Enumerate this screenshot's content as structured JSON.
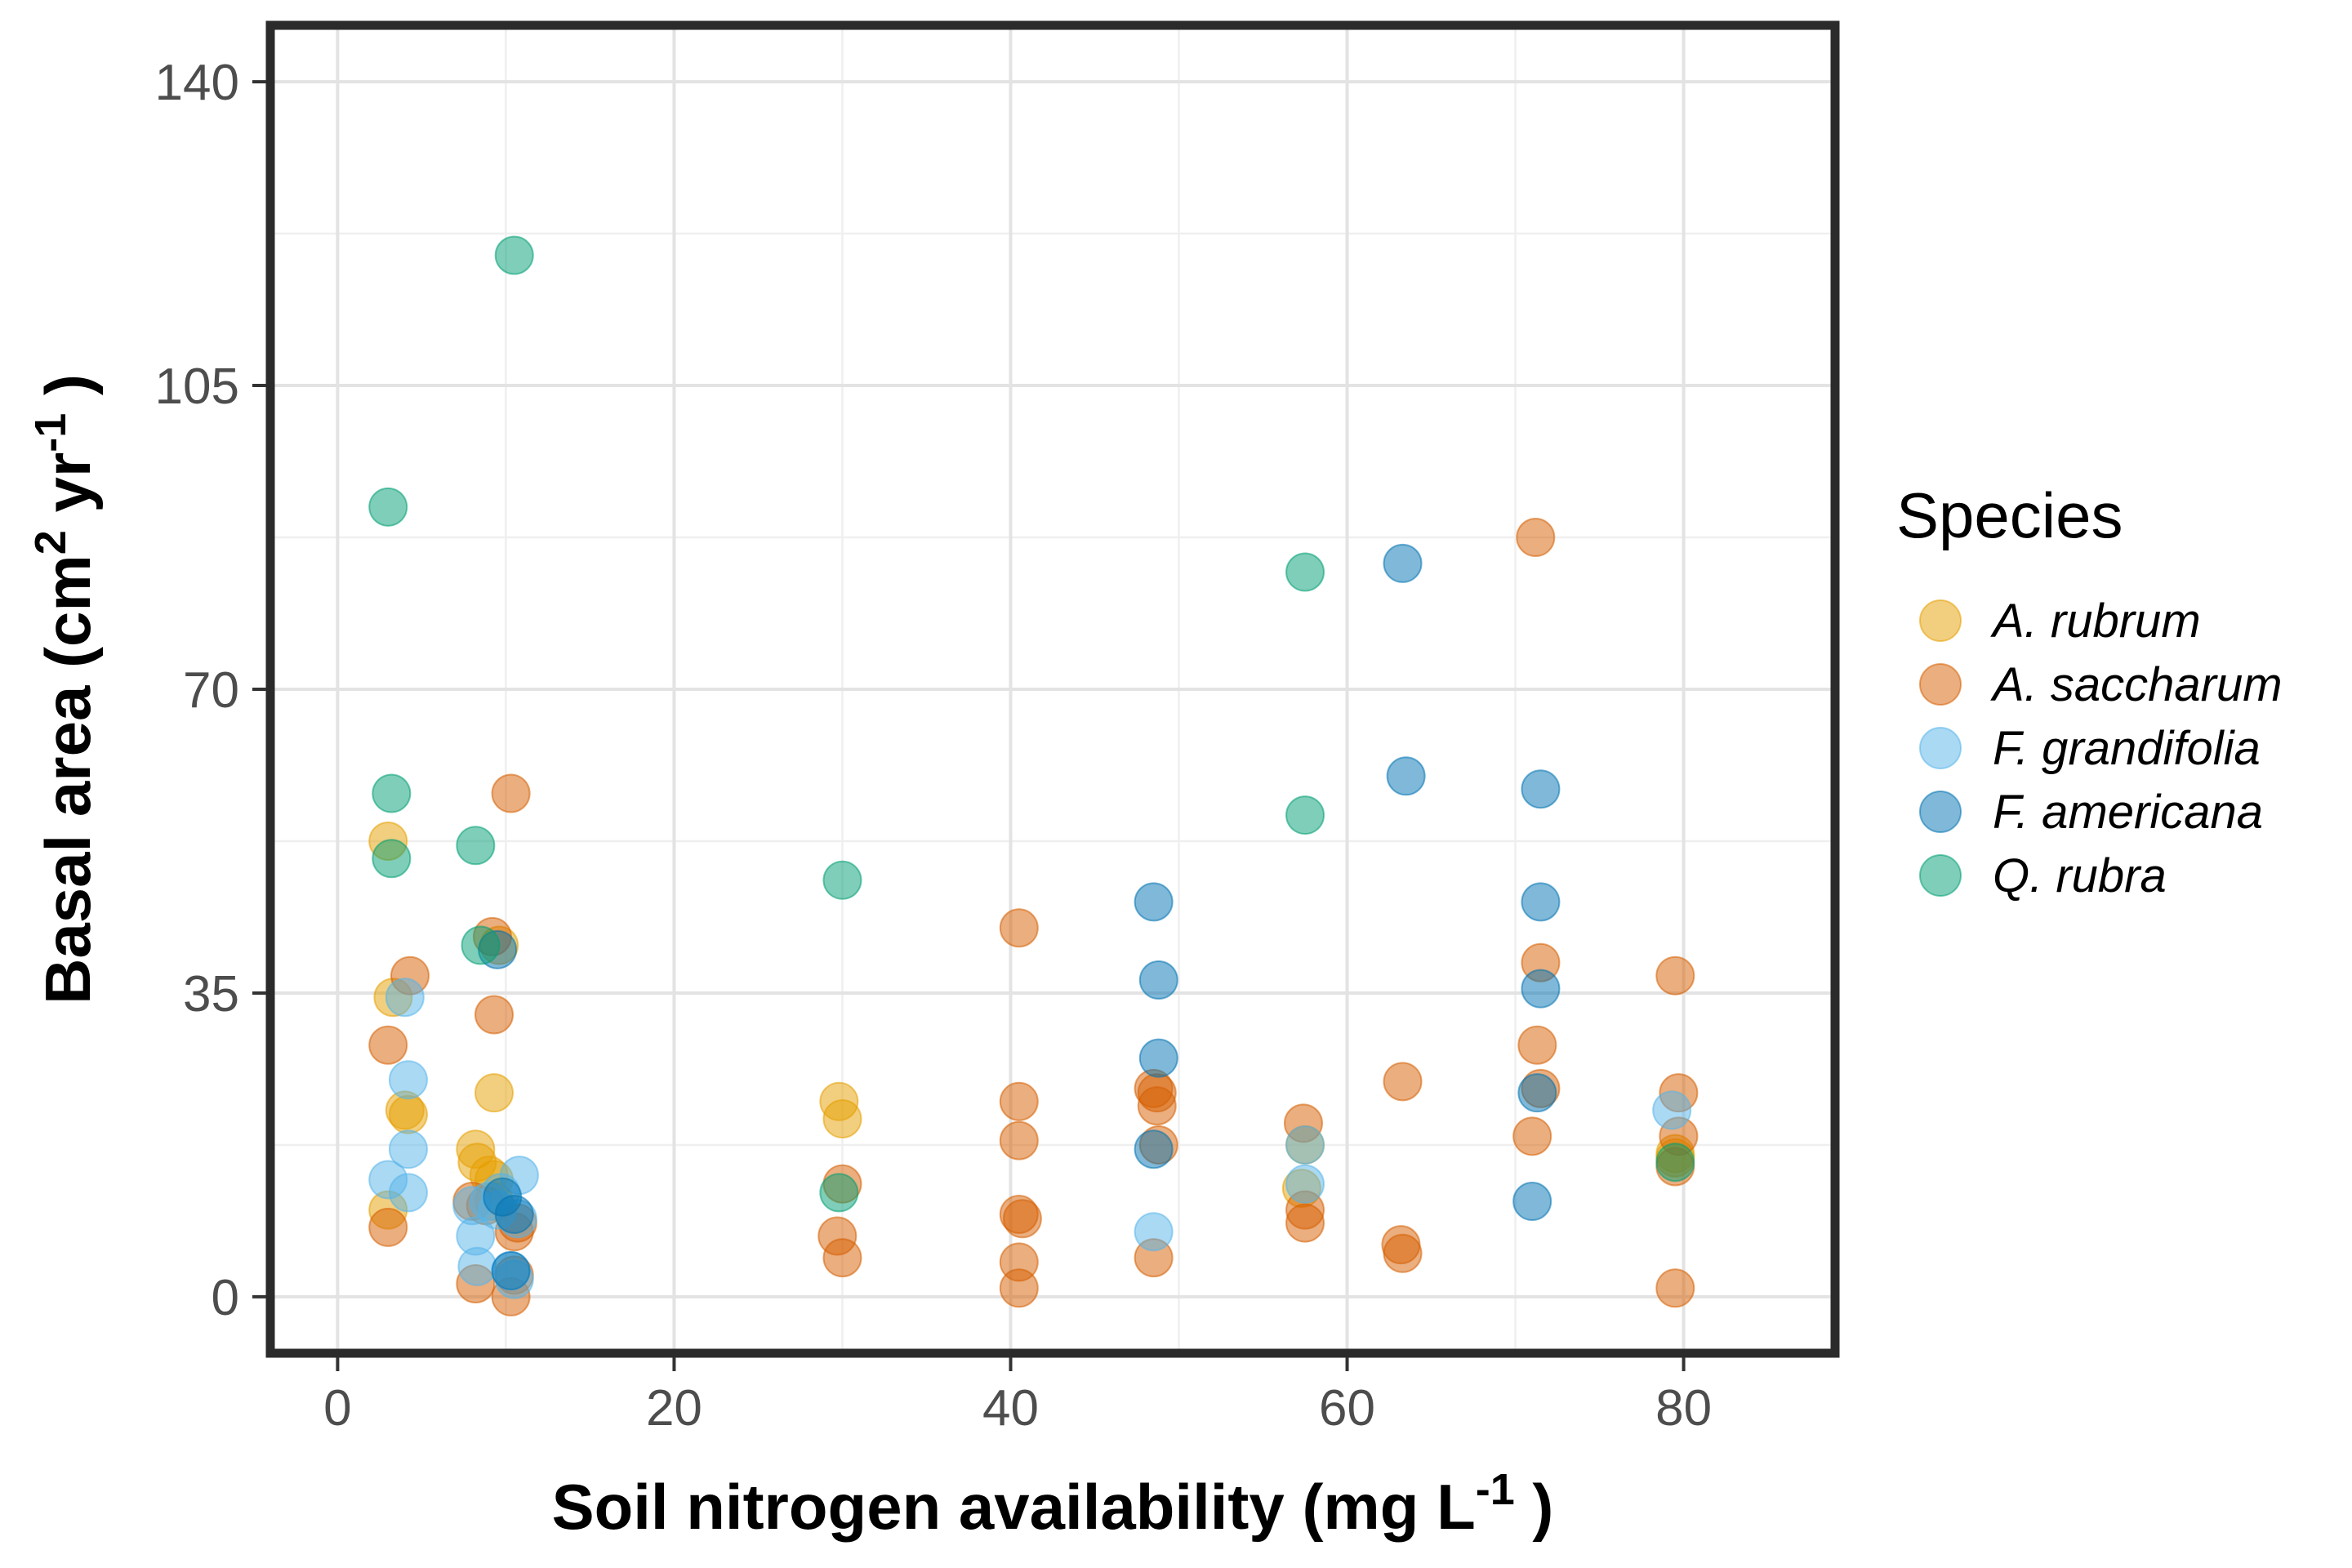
{
  "chart_data": {
    "type": "scatter",
    "xlabel": "Soil nitrogen availability (mg L",
    "xlabel_sup": "-1",
    "xlabel_end": " )",
    "ylabel_parts": {
      "a": "Basal area (cm",
      "sup1": "2",
      "b": " yr",
      "sup2": "-1",
      "c": " )"
    },
    "xlim": [
      -4,
      89
    ],
    "ylim": [
      -6.5,
      146.5
    ],
    "x_ticks": [
      0,
      20,
      40,
      60,
      80
    ],
    "y_ticks": [
      0,
      35,
      70,
      105,
      140
    ],
    "x_tick_labels": [
      "0",
      "20",
      "40",
      "60",
      "80"
    ],
    "y_tick_labels": [
      "0",
      "35",
      "70",
      "105",
      "140"
    ],
    "grid": true,
    "legend": {
      "title": "Species",
      "placement": "right"
    },
    "series": [
      {
        "name": "A. rubrum",
        "color": "#E69F00",
        "points": [
          [
            3,
            52.5
          ],
          [
            3,
            10
          ],
          [
            3.3,
            34.5
          ],
          [
            4,
            21.5
          ],
          [
            4.2,
            21
          ],
          [
            8.2,
            17
          ],
          [
            8.3,
            15.5
          ],
          [
            9,
            14
          ],
          [
            9.3,
            11
          ],
          [
            9.3,
            13.5
          ],
          [
            9.6,
            40.5
          ],
          [
            9.3,
            23.5
          ],
          [
            29.8,
            22.5
          ],
          [
            30,
            20.5
          ],
          [
            57.5,
            17.5
          ],
          [
            57.3,
            12.5
          ],
          [
            79.5,
            16.5
          ],
          [
            79.5,
            16
          ]
        ]
      },
      {
        "name": "A. saccharum",
        "color": "#D55E00",
        "points": [
          [
            3,
            29
          ],
          [
            3,
            8
          ],
          [
            4.3,
            37
          ],
          [
            8,
            11
          ],
          [
            8.2,
            1.5
          ],
          [
            8.8,
            10.5
          ],
          [
            9.2,
            41.5
          ],
          [
            9.3,
            32.5
          ],
          [
            10.3,
            58
          ],
          [
            10.3,
            0
          ],
          [
            10.5,
            2.5
          ],
          [
            10.5,
            7.5
          ],
          [
            10.7,
            8.5
          ],
          [
            29.7,
            7
          ],
          [
            30,
            4.5
          ],
          [
            30,
            13
          ],
          [
            40.5,
            22.5
          ],
          [
            40.5,
            18
          ],
          [
            40.5,
            9.5
          ],
          [
            40.7,
            9
          ],
          [
            40.5,
            4
          ],
          [
            40.5,
            1
          ],
          [
            40.5,
            42.5
          ],
          [
            48.5,
            24
          ],
          [
            48.7,
            22
          ],
          [
            48.7,
            23.5
          ],
          [
            48.8,
            17.5
          ],
          [
            48.5,
            4.5
          ],
          [
            57.4,
            20
          ],
          [
            57.5,
            10
          ],
          [
            57.5,
            8.5
          ],
          [
            63.2,
            6
          ],
          [
            63.3,
            5
          ],
          [
            63.3,
            24.8
          ],
          [
            71.2,
            87.5
          ],
          [
            71.5,
            38.5
          ],
          [
            71.3,
            29
          ],
          [
            71.5,
            24
          ],
          [
            71,
            18.5
          ],
          [
            79.7,
            23.5
          ],
          [
            79.7,
            18.5
          ],
          [
            79.5,
            37
          ],
          [
            79.5,
            15
          ],
          [
            79.5,
            1
          ]
        ]
      },
      {
        "name": "F. grandifolia",
        "color": "#56B4E9",
        "points": [
          [
            3,
            13.5
          ],
          [
            4,
            34.5
          ],
          [
            4.2,
            25
          ],
          [
            4.2,
            17
          ],
          [
            4.2,
            12
          ],
          [
            8,
            10.5
          ],
          [
            8.2,
            7
          ],
          [
            8.3,
            3.5
          ],
          [
            9,
            11
          ],
          [
            9.5,
            10
          ],
          [
            9.7,
            12
          ],
          [
            10.3,
            3
          ],
          [
            10.5,
            2
          ],
          [
            10.7,
            9
          ],
          [
            10.8,
            14
          ],
          [
            48.5,
            7.5
          ],
          [
            57.5,
            17.5
          ],
          [
            57.5,
            13
          ],
          [
            79.3,
            21.5
          ]
        ]
      },
      {
        "name": "F. americana",
        "color": "#0072B2",
        "points": [
          [
            9.5,
            40
          ],
          [
            9.8,
            11.5
          ],
          [
            10.3,
            3
          ],
          [
            10.5,
            9.5
          ],
          [
            48.5,
            45.5
          ],
          [
            48.8,
            36.5
          ],
          [
            48.8,
            27.5
          ],
          [
            48.5,
            17
          ],
          [
            63.3,
            84.5
          ],
          [
            63.5,
            60
          ],
          [
            71.5,
            58.5
          ],
          [
            71.5,
            45.5
          ],
          [
            71.5,
            35.5
          ],
          [
            71.3,
            23.5
          ],
          [
            71,
            11
          ]
        ]
      },
      {
        "name": "Q. rubra",
        "color": "#009E73",
        "points": [
          [
            3,
            91
          ],
          [
            3.2,
            58
          ],
          [
            3.2,
            50.5
          ],
          [
            8.2,
            52
          ],
          [
            8.5,
            40.5
          ],
          [
            10.5,
            120
          ],
          [
            29.8,
            12
          ],
          [
            30,
            48
          ],
          [
            57.5,
            83.5
          ],
          [
            57.5,
            55.5
          ],
          [
            79.5,
            15.5
          ]
        ]
      }
    ]
  }
}
